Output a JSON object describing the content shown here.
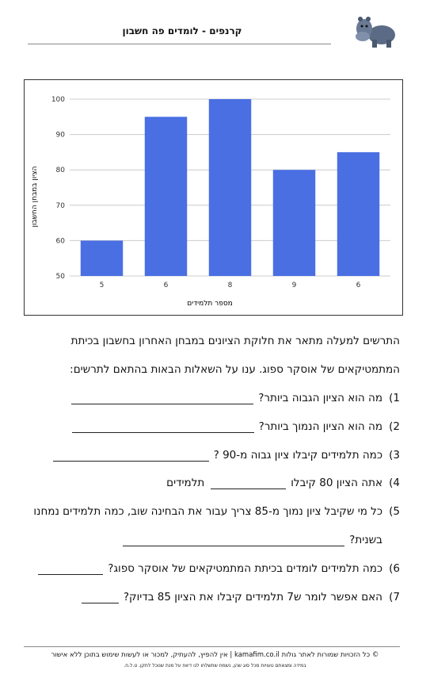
{
  "header": {
    "title": "קרנפים - לומדים פה חשבון"
  },
  "chart_data": {
    "type": "bar",
    "categories": [
      "5",
      "6",
      "8",
      "9",
      "6"
    ],
    "values": [
      60,
      95,
      100,
      80,
      85
    ],
    "color": "#4a6fe3",
    "y_label": "הציון במבחן החשבון",
    "x_label": "מספר תלמידים",
    "ylim": [
      50,
      100
    ],
    "yticks": [
      50,
      60,
      70,
      80,
      90,
      100
    ],
    "grid": true
  },
  "intro": [
    "התרשים למעלה מתאר את חלוקת הציונים במבחן האחרון בחשבון בכיתת",
    "המתמטיקאים של אוסקר ספוג. ענו על השאלות הבאות בהתאם לתרשים:"
  ],
  "questions": [
    {
      "number": "1)",
      "text": "מה הוא הציון הגבוה ביותר?"
    },
    {
      "number": "2)",
      "text": "מה הוא הציון הנמוך ביותר?"
    },
    {
      "number": "3)",
      "text": "כמה תלמידים קיבלו ציון גבוה מ-90 ?"
    },
    {
      "number": "4)",
      "text": "אתה הציון 80 קיבלו",
      "text_after": "תלמידים"
    },
    {
      "number": "5)",
      "text": "כל מי שקיבל ציון נמוך מ-85 צריך עבור את הבחינה שוב, כמה תלמידים נמחנו",
      "text_line2": "בשנית?"
    },
    {
      "number": "6)",
      "text": "כמה תלמידים לומדים בכיתת המתמטיקאים של אוסקר ספוג?"
    },
    {
      "number": "7)",
      "text": "האם אפשר לומר ש7 תלמידים קיבלו את הציון 85 בדיוק?"
    }
  ],
  "footer": {
    "copyright": "© כל הזכויות שמורות לאתר גולות kamafim.co.il | אין להפיץ, להעתיק, למכור או לעשות שימוש בתוכן ללא אישור",
    "note": "במידה ומצאתם טעויות מכל סוג שהן, נשמח שתשלחו לנו דיווח על מנת שנוכל לתקן. ט.ל.ח."
  }
}
